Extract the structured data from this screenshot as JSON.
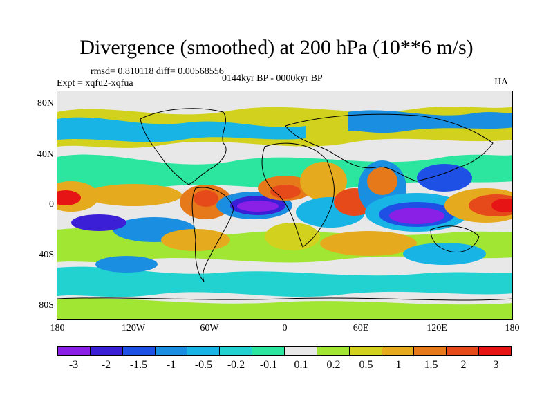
{
  "title": "Divergence (smoothed) at 200 hPa (10**6 m/s)",
  "stats": "rmsd= 0.810118 diff= 0.00568556",
  "experiment": "Expt = xqfu2-xqfua",
  "period": "0144kyr BP - 0000kyr BP",
  "season": "JJA",
  "y_ticks": [
    "80N",
    "40N",
    "0",
    "40S",
    "80S"
  ],
  "x_ticks": [
    "180",
    "120W",
    "60W",
    "0",
    "60E",
    "120E",
    "180"
  ],
  "colorbar": {
    "labels": [
      "-3",
      "-2",
      "-1.5",
      "-1",
      "-0.5",
      "-0.2",
      "-0.1",
      "0.1",
      "0.2",
      "0.5",
      "1",
      "1.5",
      "2",
      "3"
    ],
    "colors": [
      "#8a1fe6",
      "#3a1fd6",
      "#1e50e6",
      "#1a8ee0",
      "#18b4e6",
      "#22d2d0",
      "#2ce6a0",
      "#e8e8e8",
      "#a0e632",
      "#d2d21e",
      "#e6aa1e",
      "#e67a1a",
      "#e64a1a",
      "#e61414"
    ]
  },
  "map_colors": {
    "background": "#e8e8e8",
    "coast": "#000000"
  }
}
